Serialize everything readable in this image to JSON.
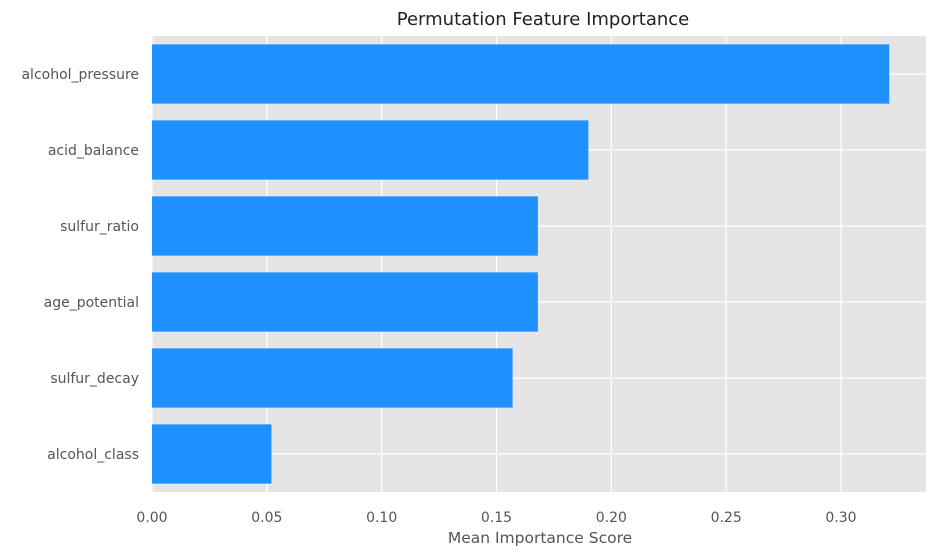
{
  "chart_data": {
    "type": "bar",
    "orientation": "horizontal",
    "title": "Permutation Feature Importance",
    "xlabel": "Mean Importance Score",
    "ylabel": "",
    "xlim": [
      0,
      0.337
    ],
    "xticks": [
      0.0,
      0.05,
      0.1,
      0.15,
      0.2,
      0.25,
      0.3
    ],
    "xtick_labels": [
      "0.00",
      "0.05",
      "0.10",
      "0.15",
      "0.20",
      "0.25",
      "0.30"
    ],
    "categories": [
      "alcohol_pressure",
      "acid_balance",
      "sulfur_ratio",
      "age_potential",
      "sulfur_decay",
      "alcohol_class"
    ],
    "values": [
      0.321,
      0.19,
      0.168,
      0.168,
      0.157,
      0.052
    ],
    "bar_color": "#1e90ff",
    "background_color": "#e5e5e5",
    "grid_color": "#ffffff",
    "grid": true,
    "legend": "none"
  }
}
